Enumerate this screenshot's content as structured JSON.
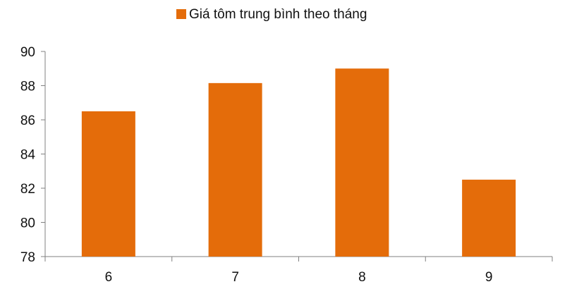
{
  "chart_data": {
    "type": "bar",
    "categories": [
      "6",
      "7",
      "8",
      "9"
    ],
    "series": [
      {
        "name": "Giá tôm trung bình theo tháng",
        "values": [
          86.5,
          88.15,
          89.0,
          82.5
        ]
      }
    ],
    "ylim": [
      78,
      90
    ],
    "yticks": [
      78,
      80,
      82,
      84,
      86,
      88,
      90
    ],
    "title": "",
    "xlabel": "",
    "ylabel": "",
    "grid": false,
    "legend_position": "top-center",
    "colors": {
      "bar": "#E46C0A",
      "axis": "#808080"
    }
  }
}
